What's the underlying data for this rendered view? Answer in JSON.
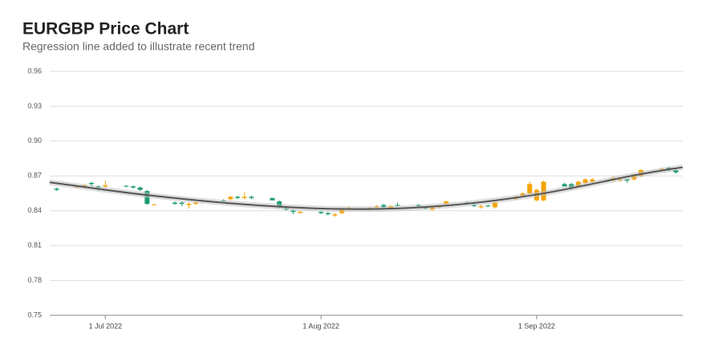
{
  "chart_data": {
    "type": "candlestick",
    "title": "EURGBP Price Chart",
    "subtitle": "Regression line added to illustrate recent trend",
    "up_color": "#f5a300",
    "down_color": "#1a9c6e",
    "grid": true,
    "xlim": [
      "2022-06-23",
      "2022-09-22"
    ],
    "xticks": [
      {
        "value": "2022-07-01",
        "label": "1 Jul 2022"
      },
      {
        "value": "2022-08-01",
        "label": "1 Aug 2022"
      },
      {
        "value": "2022-09-01",
        "label": "1 Sep 2022"
      }
    ],
    "ylim": [
      0.75,
      0.96
    ],
    "yticks": [
      0.75,
      0.78,
      0.81,
      0.84,
      0.87,
      {
        "value": 0.9,
        "label": "0.90"
      },
      0.93,
      0.96
    ],
    "x": [
      "2022-06-24",
      "2022-06-27",
      "2022-06-28",
      "2022-06-29",
      "2022-06-30",
      "2022-07-01",
      "2022-07-04",
      "2022-07-05",
      "2022-07-06",
      "2022-07-07",
      "2022-07-08",
      "2022-07-11",
      "2022-07-12",
      "2022-07-13",
      "2022-07-14",
      "2022-07-15",
      "2022-07-18",
      "2022-07-19",
      "2022-07-20",
      "2022-07-21",
      "2022-07-22",
      "2022-07-25",
      "2022-07-26",
      "2022-07-27",
      "2022-07-28",
      "2022-07-29",
      "2022-08-01",
      "2022-08-02",
      "2022-08-03",
      "2022-08-04",
      "2022-08-05",
      "2022-08-08",
      "2022-08-09",
      "2022-08-10",
      "2022-08-11",
      "2022-08-12",
      "2022-08-15",
      "2022-08-16",
      "2022-08-17",
      "2022-08-18",
      "2022-08-19",
      "2022-08-22",
      "2022-08-23",
      "2022-08-24",
      "2022-08-25",
      "2022-08-26",
      "2022-08-29",
      "2022-08-30",
      "2022-08-31",
      "2022-09-01",
      "2022-09-02",
      "2022-09-05",
      "2022-09-06",
      "2022-09-07",
      "2022-09-08",
      "2022-09-09",
      "2022-09-12",
      "2022-09-13",
      "2022-09-14",
      "2022-09-15",
      "2022-09-16",
      "2022-09-19",
      "2022-09-20",
      "2022-09-21"
    ],
    "open": [
      0.859,
      0.86,
      0.861,
      0.864,
      0.861,
      0.861,
      0.8615,
      0.861,
      0.86,
      0.857,
      0.845,
      0.847,
      0.847,
      0.845,
      0.846,
      0.848,
      0.849,
      0.85,
      0.852,
      0.851,
      0.852,
      0.851,
      0.848,
      0.842,
      0.84,
      0.838,
      0.839,
      0.838,
      0.836,
      0.838,
      0.842,
      0.842,
      0.843,
      0.845,
      0.842,
      0.845,
      0.845,
      0.843,
      0.841,
      0.843,
      0.846,
      0.847,
      0.845,
      0.843,
      0.8445,
      0.843,
      0.85,
      0.853,
      0.855,
      0.849,
      0.849,
      0.863,
      0.863,
      0.861,
      0.864,
      0.865,
      0.866,
      0.866,
      0.867,
      0.867,
      0.87,
      0.875,
      0.877,
      0.875
    ],
    "high": [
      0.86,
      0.862,
      0.863,
      0.865,
      0.862,
      0.866,
      0.862,
      0.862,
      0.861,
      0.858,
      0.846,
      0.848,
      0.848,
      0.847,
      0.848,
      0.85,
      0.85,
      0.853,
      0.853,
      0.856,
      0.853,
      0.851,
      0.849,
      0.843,
      0.841,
      0.84,
      0.84,
      0.839,
      0.838,
      0.842,
      0.844,
      0.843,
      0.845,
      0.846,
      0.845,
      0.847,
      0.846,
      0.844,
      0.844,
      0.845,
      0.849,
      0.848,
      0.846,
      0.845,
      0.845,
      0.848,
      0.853,
      0.856,
      0.865,
      0.859,
      0.866,
      0.864,
      0.864,
      0.866,
      0.868,
      0.868,
      0.87,
      0.868,
      0.867,
      0.872,
      0.876,
      0.877,
      0.878,
      0.877
    ],
    "low": [
      0.857,
      0.86,
      0.861,
      0.861,
      0.857,
      0.86,
      0.86,
      0.859,
      0.857,
      0.845,
      0.845,
      0.845,
      0.844,
      0.842,
      0.845,
      0.847,
      0.848,
      0.849,
      0.85,
      0.85,
      0.85,
      0.849,
      0.842,
      0.84,
      0.837,
      0.838,
      0.837,
      0.836,
      0.835,
      0.837,
      0.841,
      0.841,
      0.842,
      0.842,
      0.841,
      0.844,
      0.843,
      0.841,
      0.84,
      0.842,
      0.845,
      0.845,
      0.843,
      0.842,
      0.843,
      0.842,
      0.849,
      0.852,
      0.854,
      0.848,
      0.848,
      0.861,
      0.858,
      0.86,
      0.863,
      0.864,
      0.865,
      0.865,
      0.864,
      0.866,
      0.869,
      0.875,
      0.874,
      0.872
    ],
    "close": [
      0.858,
      0.861,
      0.862,
      0.863,
      0.86,
      0.862,
      0.861,
      0.86,
      0.858,
      0.846,
      0.8455,
      0.846,
      0.846,
      0.846,
      0.847,
      0.849,
      0.8485,
      0.852,
      0.851,
      0.852,
      0.851,
      0.849,
      0.843,
      0.841,
      0.839,
      0.839,
      0.838,
      0.837,
      0.837,
      0.841,
      0.8425,
      0.8425,
      0.844,
      0.843,
      0.844,
      0.8445,
      0.844,
      0.842,
      0.843,
      0.844,
      0.848,
      0.846,
      0.844,
      0.844,
      0.844,
      0.847,
      0.852,
      0.855,
      0.863,
      0.858,
      0.865,
      0.861,
      0.86,
      0.865,
      0.867,
      0.867,
      0.868,
      0.867,
      0.866,
      0.871,
      0.875,
      0.876,
      0.876,
      0.873
    ],
    "regression": {
      "color": "#555555",
      "x": [
        "2022-06-23",
        "2022-07-07",
        "2022-07-21",
        "2022-08-04",
        "2022-08-18",
        "2022-09-01",
        "2022-09-15",
        "2022-09-22"
      ],
      "values": [
        0.8645,
        0.8535,
        0.8455,
        0.8415,
        0.844,
        0.854,
        0.8705,
        0.8775
      ]
    }
  }
}
